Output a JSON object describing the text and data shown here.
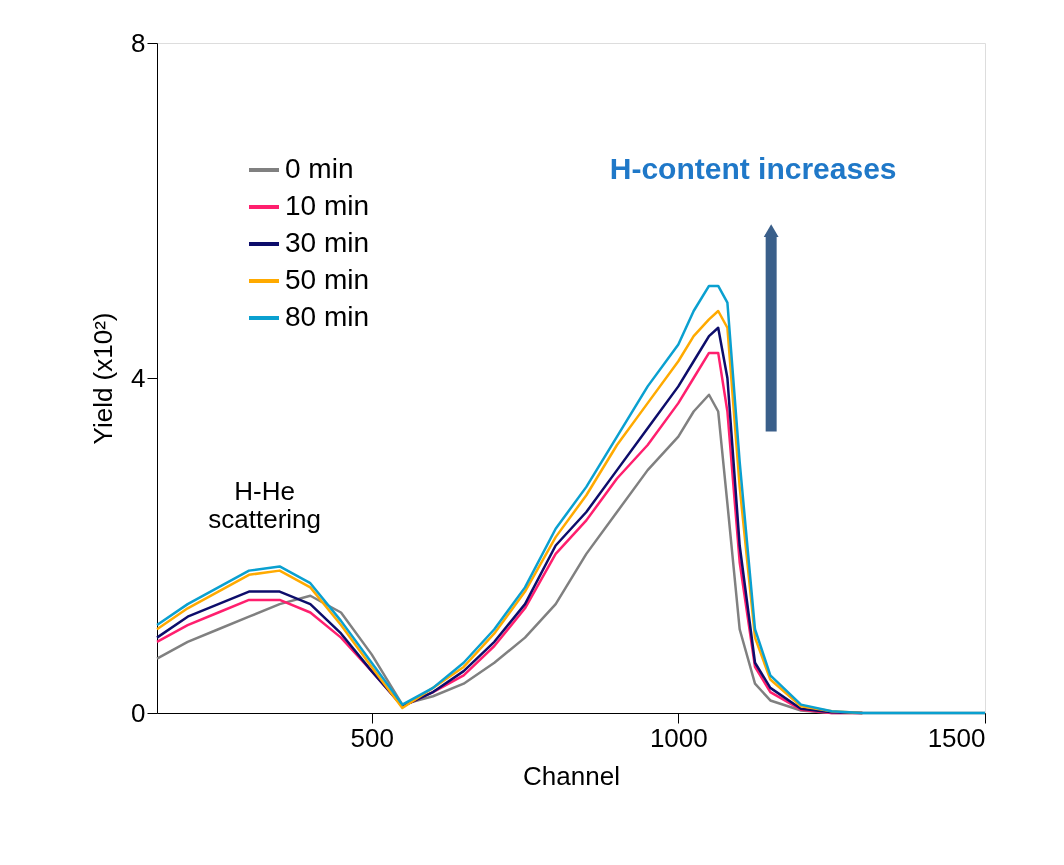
{
  "chart_data": {
    "type": "line",
    "xlabel": "Channel",
    "ylabel": "Yield (x10²)",
    "x": [
      150,
      200,
      250,
      300,
      350,
      400,
      450,
      500,
      550,
      600,
      650,
      700,
      750,
      800,
      850,
      900,
      950,
      1000,
      1025,
      1050,
      1065,
      1080,
      1100,
      1125,
      1150,
      1200,
      1250,
      1300,
      1400,
      1500
    ],
    "series": [
      {
        "name": "0 min",
        "color": "#808080",
        "values": [
          0.65,
          0.85,
          1.0,
          1.15,
          1.3,
          1.4,
          1.2,
          0.7,
          0.1,
          0.2,
          0.35,
          0.6,
          0.9,
          1.3,
          1.9,
          2.4,
          2.9,
          3.3,
          3.6,
          3.8,
          3.6,
          2.5,
          1.0,
          0.35,
          0.15,
          0.03,
          0.0,
          0.0,
          0.0,
          0.0
        ]
      },
      {
        "name": "10 min",
        "color": "#ff1f6e",
        "values": [
          0.85,
          1.05,
          1.2,
          1.35,
          1.35,
          1.2,
          0.9,
          0.5,
          0.08,
          0.25,
          0.45,
          0.8,
          1.25,
          1.9,
          2.3,
          2.8,
          3.2,
          3.7,
          4.0,
          4.3,
          4.3,
          3.6,
          1.8,
          0.55,
          0.25,
          0.04,
          0.0,
          0.0,
          null,
          null
        ]
      },
      {
        "name": "30 min",
        "color": "#0d0d6b",
        "values": [
          0.9,
          1.15,
          1.3,
          1.45,
          1.45,
          1.3,
          0.95,
          0.5,
          0.08,
          0.25,
          0.5,
          0.85,
          1.3,
          2.0,
          2.4,
          2.9,
          3.4,
          3.9,
          4.2,
          4.5,
          4.6,
          4.0,
          2.0,
          0.6,
          0.3,
          0.05,
          0.01,
          0.0,
          null,
          null
        ]
      },
      {
        "name": "50 min",
        "color": "#ffaa00",
        "values": [
          1.0,
          1.25,
          1.45,
          1.65,
          1.7,
          1.5,
          1.05,
          0.55,
          0.06,
          0.3,
          0.55,
          0.95,
          1.45,
          2.1,
          2.6,
          3.2,
          3.7,
          4.2,
          4.5,
          4.7,
          4.8,
          4.6,
          2.7,
          0.9,
          0.4,
          0.08,
          0.02,
          0.0,
          null,
          null
        ]
      },
      {
        "name": "80 min",
        "color": "#0aa0d0",
        "values": [
          1.05,
          1.3,
          1.5,
          1.7,
          1.75,
          1.55,
          1.1,
          0.6,
          0.1,
          0.3,
          0.6,
          1.0,
          1.5,
          2.2,
          2.7,
          3.3,
          3.9,
          4.4,
          4.8,
          5.1,
          5.1,
          4.9,
          3.0,
          1.0,
          0.45,
          0.1,
          0.02,
          0.0,
          0.0,
          0.0
        ]
      }
    ],
    "xlim": [
      150,
      1500
    ],
    "xticks": [
      500,
      1000,
      1500
    ],
    "ylim": [
      0,
      8
    ],
    "yticks": [
      0,
      4,
      8
    ],
    "grid": false,
    "legend": "top left",
    "marker": "none",
    "line_style": "solid",
    "annotations": [
      "H-He\nscattering",
      "H-content increases"
    ]
  }
}
